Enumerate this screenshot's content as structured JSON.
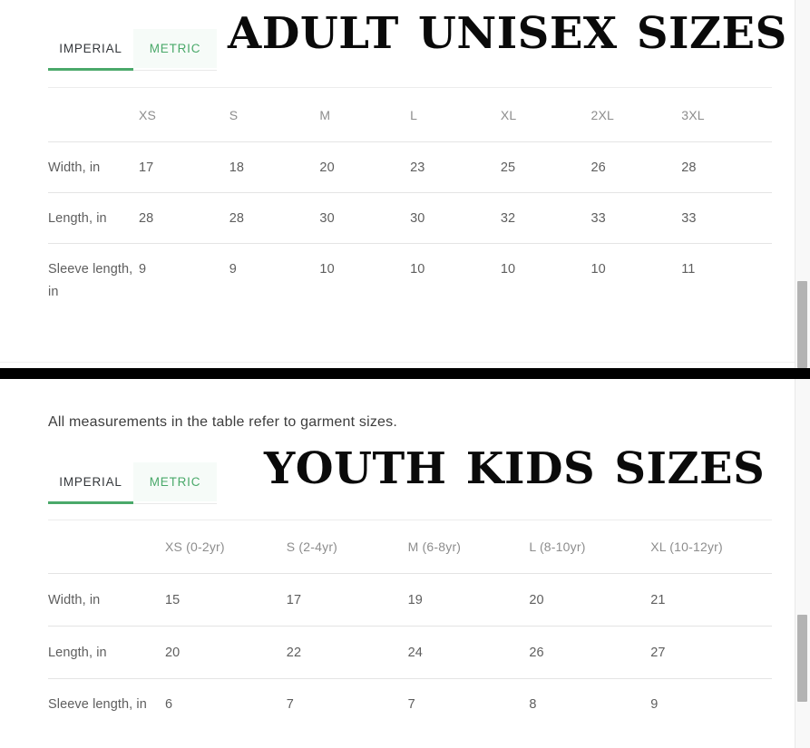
{
  "colors": {
    "accent_green": "#4aa96a",
    "divider": "#000000",
    "scroll_thumb": "#b3b3b3"
  },
  "note": "All measurements in the table refer to garment sizes.",
  "sections": [
    {
      "name": "adult",
      "title": "ADULT UNISEX SIZES",
      "tabs": [
        {
          "label": "IMPERIAL",
          "active": true
        },
        {
          "label": "METRIC",
          "active": false
        }
      ],
      "table": {
        "columns": [
          "XS",
          "S",
          "M",
          "L",
          "XL",
          "2XL",
          "3XL"
        ],
        "rows": [
          {
            "label": "Width, in",
            "values": [
              "17",
              "18",
              "20",
              "23",
              "25",
              "26",
              "28"
            ]
          },
          {
            "label": "Length, in",
            "values": [
              "28",
              "28",
              "30",
              "30",
              "32",
              "33",
              "33"
            ]
          },
          {
            "label": "Sleeve length, in",
            "values": [
              "9",
              "9",
              "10",
              "10",
              "10",
              "10",
              "11"
            ]
          }
        ]
      }
    },
    {
      "name": "youth",
      "title": "YOUTH KIDS SIZES",
      "tabs": [
        {
          "label": "IMPERIAL",
          "active": true
        },
        {
          "label": "METRIC",
          "active": false
        }
      ],
      "table": {
        "columns": [
          "XS (0-2yr)",
          "S (2-4yr)",
          "M (6-8yr)",
          "L (8-10yr)",
          "XL (10-12yr)"
        ],
        "rows": [
          {
            "label": "Width, in",
            "values": [
              "15",
              "17",
              "19",
              "20",
              "21"
            ]
          },
          {
            "label": "Length, in",
            "values": [
              "20",
              "22",
              "24",
              "26",
              "27"
            ]
          },
          {
            "label": "Sleeve length, in",
            "values": [
              "6",
              "7",
              "7",
              "8",
              "9"
            ]
          }
        ]
      }
    }
  ]
}
